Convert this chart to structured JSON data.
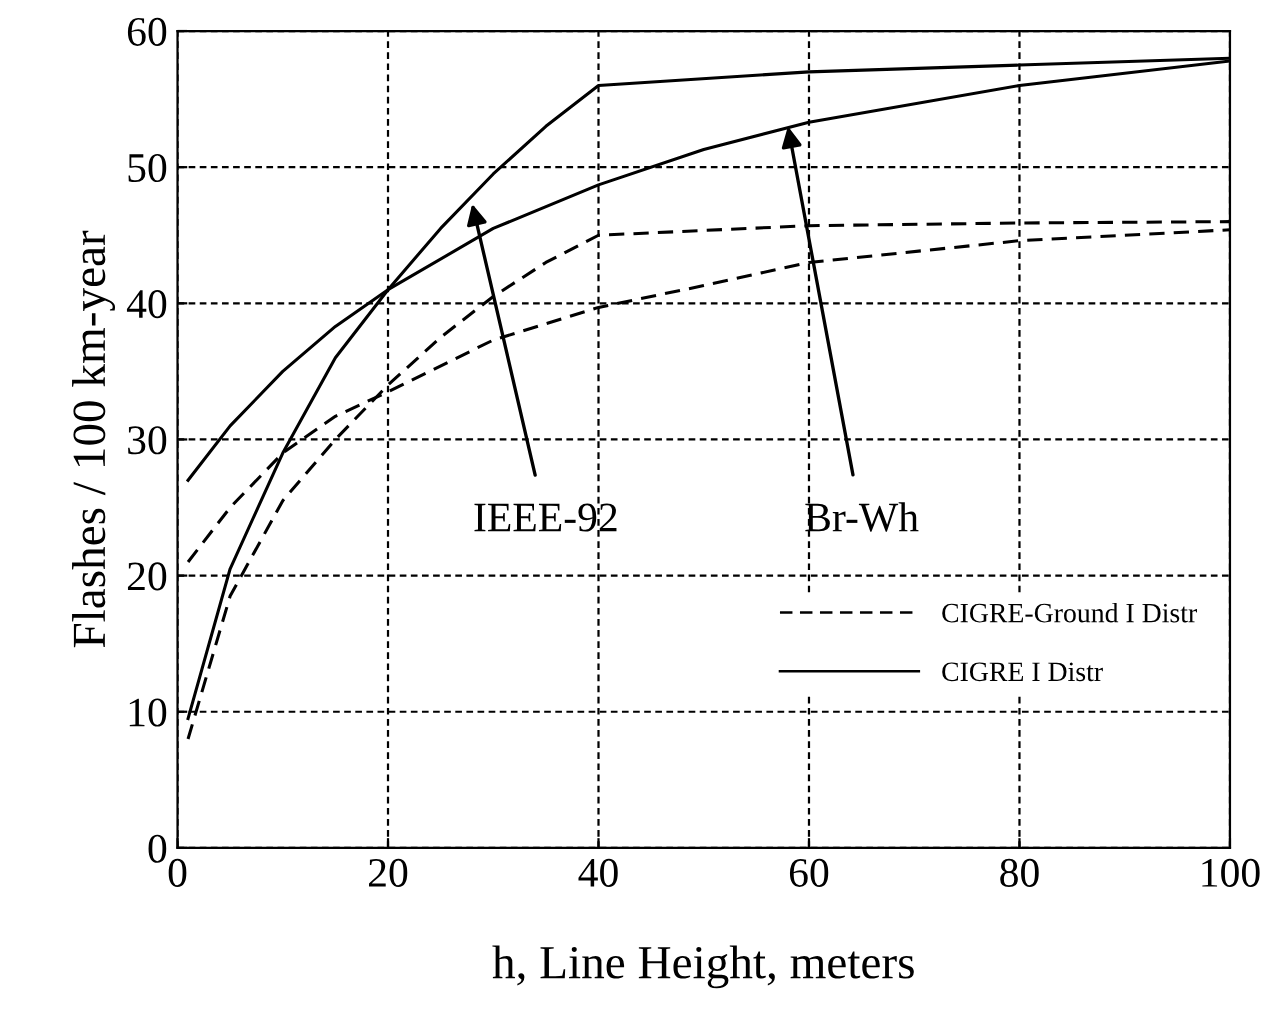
{
  "chart_data": {
    "type": "line",
    "xlabel": "h, Line Height, meters",
    "ylabel": "Flashes / 100 km-year",
    "xlim": [
      0,
      100
    ],
    "xticks": [
      0,
      20,
      40,
      60,
      80,
      100
    ],
    "ylim": [
      0,
      60
    ],
    "yticks": [
      0,
      10,
      20,
      30,
      40,
      50,
      60
    ],
    "grid": true,
    "legend": "bottom right",
    "series": [
      {
        "name": "CIGRE-Ground I Distr",
        "color": "#000000",
        "line_style": "dashed",
        "x": [
          1,
          5,
          10,
          15,
          20,
          25,
          30,
          35,
          40,
          60,
          80,
          100
        ],
        "values": [
          8,
          18.5,
          25.5,
          30,
          34,
          37.5,
          40.5,
          43,
          45,
          45.7,
          45.9,
          46
        ]
      },
      {
        "color": "#000000",
        "line_style": "dashed",
        "x": [
          1,
          5,
          10,
          15,
          20,
          30,
          40,
          50,
          60,
          80,
          100
        ],
        "values": [
          21,
          25,
          29,
          31.7,
          33.5,
          37.3,
          39.7,
          41.3,
          43,
          44.6,
          45.4
        ]
      },
      {
        "name": "CIGRE I Distr",
        "color": "#000000",
        "line_style": "solid",
        "x": [
          1,
          5,
          10,
          15,
          20,
          25,
          30,
          35,
          40,
          60,
          80,
          100
        ],
        "values": [
          9.5,
          20.5,
          29,
          36,
          41,
          45.5,
          49.5,
          53,
          56,
          57,
          57.5,
          58
        ]
      },
      {
        "color": "#000000",
        "line_style": "solid",
        "x": [
          1,
          5,
          10,
          15,
          20,
          30,
          40,
          50,
          60,
          80,
          100
        ],
        "values": [
          27,
          31,
          35,
          38.3,
          41,
          45.5,
          48.7,
          51.3,
          53.3,
          56,
          57.8
        ]
      }
    ],
    "annotations": [
      {
        "text": "IEEE-92",
        "x": 28,
        "y": 47.3
      },
      {
        "text": "Br-Wh",
        "x": 58,
        "y": 53
      }
    ]
  }
}
